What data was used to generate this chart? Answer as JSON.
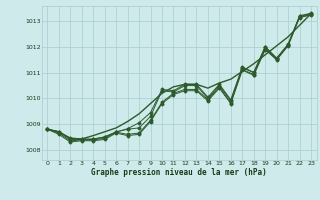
{
  "title": "Graphe pression niveau de la mer (hPa)",
  "background_color": "#ceeaea",
  "grid_color": "#aacccc",
  "line_color": "#2d5a2d",
  "text_color": "#1a3a1a",
  "xlim": [
    -0.5,
    23.5
  ],
  "ylim": [
    1007.6,
    1013.6
  ],
  "yticks": [
    1008,
    1009,
    1010,
    1011,
    1012,
    1013
  ],
  "xticks": [
    0,
    1,
    2,
    3,
    4,
    5,
    6,
    7,
    8,
    9,
    10,
    11,
    12,
    13,
    14,
    15,
    16,
    17,
    18,
    19,
    20,
    21,
    22,
    23
  ],
  "series": [
    [
      1008.8,
      1008.7,
      1008.45,
      1008.42,
      1008.42,
      1008.5,
      1008.68,
      1008.82,
      1009.05,
      1009.45,
      1010.35,
      1010.3,
      1010.55,
      1010.55,
      1010.05,
      1010.55,
      1009.95,
      1011.22,
      1011.02,
      1012.02,
      1011.57,
      1012.12,
      1013.22,
      1013.32
    ],
    [
      1008.8,
      1008.65,
      1008.35,
      1008.38,
      1008.38,
      1008.45,
      1008.68,
      1008.6,
      1008.65,
      1009.15,
      1009.85,
      1010.2,
      1010.35,
      1010.35,
      1009.95,
      1010.45,
      1009.82,
      1011.13,
      1010.93,
      1011.93,
      1011.52,
      1012.08,
      1013.17,
      1013.27
    ],
    [
      1008.8,
      1008.6,
      1008.3,
      1008.35,
      1008.35,
      1008.4,
      1008.65,
      1008.55,
      1008.6,
      1009.1,
      1009.8,
      1010.15,
      1010.3,
      1010.3,
      1009.9,
      1010.4,
      1009.8,
      1011.1,
      1010.9,
      1011.9,
      1011.5,
      1012.05,
      1013.15,
      1013.25
    ],
    [
      1008.8,
      1008.7,
      1008.4,
      1008.4,
      1008.4,
      1008.5,
      1008.7,
      1008.8,
      1008.85,
      1009.3,
      1010.3,
      1010.25,
      1010.5,
      1010.5,
      1010.0,
      1010.5,
      1009.9,
      1011.2,
      1011.0,
      1012.0,
      1011.55,
      1012.1,
      1013.2,
      1013.3
    ]
  ],
  "smooth_series": [
    [
      1008.8,
      1008.7,
      1008.45,
      1008.42,
      1008.55,
      1008.7,
      1008.85,
      1009.1,
      1009.4,
      1009.8,
      1010.2,
      1010.45,
      1010.55,
      1010.55,
      1010.4,
      1010.6,
      1010.75,
      1011.05,
      1011.35,
      1011.7,
      1012.05,
      1012.4,
      1012.85,
      1013.3
    ]
  ]
}
